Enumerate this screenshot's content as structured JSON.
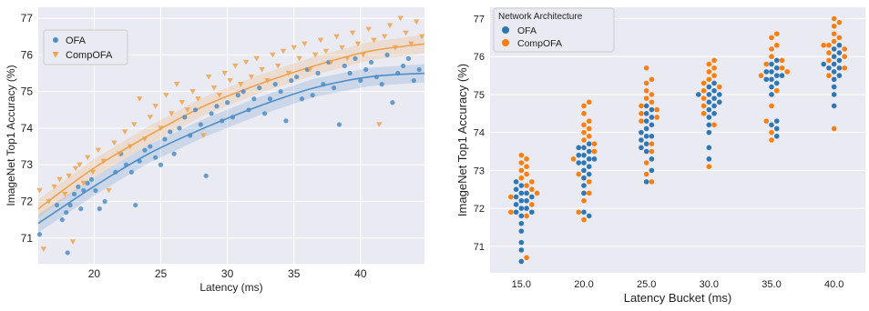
{
  "chart_data": [
    {
      "type": "scatter",
      "xlabel": "Latency (ms)",
      "ylabel": "ImageNet Top1 Accuracy (%)",
      "xlim": [
        15.8,
        44.8
      ],
      "ylim": [
        70.3,
        77.3
      ],
      "xticks": [
        20,
        25,
        30,
        35,
        40
      ],
      "yticks": [
        71,
        72,
        73,
        74,
        75,
        76,
        77
      ],
      "grid": true,
      "legend": "top-left",
      "series": [
        {
          "name": "OFA",
          "color": "#4f8dc6",
          "marker": "circle",
          "fit": [
            71.4,
            72.4,
            73.3,
            74.0,
            74.6,
            75.1,
            75.4,
            75.5
          ],
          "points": [
            [
              15.9,
              71.1
            ],
            [
              17.2,
              71.9
            ],
            [
              17.6,
              71.5
            ],
            [
              17.9,
              71.7
            ],
            [
              18.0,
              70.6
            ],
            [
              18.2,
              71.9
            ],
            [
              18.5,
              72.2
            ],
            [
              18.8,
              72.4
            ],
            [
              19.0,
              71.8
            ],
            [
              19.2,
              72.3
            ],
            [
              19.5,
              72.5
            ],
            [
              19.8,
              72.6
            ],
            [
              20.1,
              72.3
            ],
            [
              20.4,
              71.8
            ],
            [
              20.8,
              72.0
            ],
            [
              21.6,
              72.8
            ],
            [
              22.0,
              73.3
            ],
            [
              22.4,
              73.0
            ],
            [
              22.8,
              72.8
            ],
            [
              23.1,
              71.9
            ],
            [
              23.4,
              73.1
            ],
            [
              23.8,
              73.4
            ],
            [
              24.2,
              73.5
            ],
            [
              24.6,
              73.2
            ],
            [
              25.0,
              73.0
            ],
            [
              25.3,
              73.7
            ],
            [
              25.7,
              73.9
            ],
            [
              26.0,
              73.3
            ],
            [
              26.4,
              74.0
            ],
            [
              26.8,
              74.3
            ],
            [
              27.2,
              73.8
            ],
            [
              27.6,
              74.5
            ],
            [
              28.0,
              74.1
            ],
            [
              28.4,
              72.7
            ],
            [
              28.8,
              74.4
            ],
            [
              29.2,
              74.6
            ],
            [
              29.6,
              74.2
            ],
            [
              30.0,
              74.7
            ],
            [
              30.4,
              74.3
            ],
            [
              30.8,
              74.9
            ],
            [
              31.2,
              75.0
            ],
            [
              31.6,
              74.5
            ],
            [
              32.0,
              74.8
            ],
            [
              32.4,
              75.1
            ],
            [
              32.8,
              74.4
            ],
            [
              33.2,
              74.8
            ],
            [
              33.6,
              75.2
            ],
            [
              34.0,
              75.0
            ],
            [
              34.4,
              74.2
            ],
            [
              34.8,
              75.3
            ],
            [
              35.2,
              75.4
            ],
            [
              35.6,
              74.8
            ],
            [
              36.0,
              75.6
            ],
            [
              36.4,
              74.9
            ],
            [
              36.8,
              75.5
            ],
            [
              37.2,
              75.2
            ],
            [
              37.6,
              75.8
            ],
            [
              38.0,
              75.1
            ],
            [
              38.4,
              74.1
            ],
            [
              38.8,
              75.7
            ],
            [
              39.2,
              75.5
            ],
            [
              39.6,
              75.9
            ],
            [
              40.0,
              75.3
            ],
            [
              40.4,
              75.6
            ],
            [
              40.8,
              75.8
            ],
            [
              41.2,
              75.4
            ],
            [
              41.6,
              75.2
            ],
            [
              42.0,
              76.0
            ],
            [
              42.4,
              74.7
            ],
            [
              42.8,
              75.5
            ],
            [
              43.2,
              75.7
            ],
            [
              43.6,
              75.9
            ],
            [
              44.0,
              75.3
            ],
            [
              44.4,
              75.6
            ]
          ]
        },
        {
          "name": "CompOFA",
          "color": "#f0a24c",
          "marker": "triangle-down",
          "fit": [
            71.8,
            72.9,
            73.8,
            74.6,
            75.2,
            75.7,
            76.1,
            76.3
          ],
          "points": [
            [
              15.9,
              72.3
            ],
            [
              16.2,
              70.7
            ],
            [
              16.6,
              72.0
            ],
            [
              17.0,
              72.4
            ],
            [
              17.4,
              72.6
            ],
            [
              17.8,
              72.2
            ],
            [
              18.1,
              72.7
            ],
            [
              18.4,
              70.9
            ],
            [
              18.6,
              72.9
            ],
            [
              18.9,
              73.0
            ],
            [
              19.2,
              72.5
            ],
            [
              19.5,
              73.2
            ],
            [
              19.9,
              72.8
            ],
            [
              20.3,
              73.4
            ],
            [
              20.7,
              73.1
            ],
            [
              21.1,
              72.3
            ],
            [
              21.5,
              73.6
            ],
            [
              21.9,
              73.3
            ],
            [
              22.3,
              73.9
            ],
            [
              22.7,
              73.5
            ],
            [
              23.0,
              74.1
            ],
            [
              23.4,
              74.8
            ],
            [
              23.8,
              73.7
            ],
            [
              24.2,
              74.3
            ],
            [
              24.6,
              74.6
            ],
            [
              25.0,
              74.0
            ],
            [
              25.4,
              74.9
            ],
            [
              25.8,
              74.4
            ],
            [
              26.2,
              75.2
            ],
            [
              26.6,
              74.7
            ],
            [
              27.0,
              74.5
            ],
            [
              27.4,
              75.0
            ],
            [
              27.8,
              74.8
            ],
            [
              28.2,
              73.8
            ],
            [
              28.6,
              75.4
            ],
            [
              29.0,
              75.1
            ],
            [
              29.4,
              74.9
            ],
            [
              29.8,
              75.5
            ],
            [
              30.2,
              75.3
            ],
            [
              30.6,
              75.7
            ],
            [
              31.0,
              75.2
            ],
            [
              31.4,
              75.8
            ],
            [
              31.8,
              75.4
            ],
            [
              32.2,
              75.9
            ],
            [
              32.6,
              75.6
            ],
            [
              33.0,
              75.3
            ],
            [
              33.4,
              76.0
            ],
            [
              33.8,
              75.7
            ],
            [
              34.2,
              76.1
            ],
            [
              34.6,
              75.5
            ],
            [
              35.0,
              76.2
            ],
            [
              35.4,
              75.9
            ],
            [
              35.8,
              76.3
            ],
            [
              36.2,
              75.6
            ],
            [
              36.6,
              76.0
            ],
            [
              37.0,
              76.4
            ],
            [
              37.4,
              76.1
            ],
            [
              37.8,
              75.8
            ],
            [
              38.2,
              76.5
            ],
            [
              38.6,
              76.2
            ],
            [
              39.0,
              75.9
            ],
            [
              39.4,
              76.6
            ],
            [
              39.8,
              76.3
            ],
            [
              40.2,
              76.0
            ],
            [
              40.6,
              76.7
            ],
            [
              41.0,
              76.4
            ],
            [
              41.4,
              74.1
            ],
            [
              41.8,
              76.5
            ],
            [
              42.2,
              76.8
            ],
            [
              42.6,
              76.2
            ],
            [
              43.0,
              77.0
            ],
            [
              43.4,
              76.6
            ],
            [
              43.8,
              76.3
            ],
            [
              44.2,
              76.9
            ],
            [
              44.6,
              76.5
            ]
          ]
        }
      ]
    },
    {
      "type": "swarm",
      "xlabel": "Latency Bucket (ms)",
      "ylabel": "ImageNet Top1 Accuracy (%)",
      "ylim": [
        70.3,
        77.3
      ],
      "yticks": [
        71,
        72,
        73,
        74,
        75,
        76,
        77
      ],
      "categories": [
        "15.0",
        "20.0",
        "25.0",
        "30.0",
        "35.0",
        "40.0"
      ],
      "grid": true,
      "legend": "top-left",
      "legend_title": "Network Architecture",
      "series": [
        {
          "name": "OFA",
          "color": "#2f77b4",
          "groups": [
            [
              70.6,
              70.9,
              71.1,
              71.4,
              71.6,
              71.8,
              71.9,
              72.0,
              72.0,
              72.1,
              72.2,
              72.3,
              72.3,
              72.4,
              72.5,
              72.6,
              72.7,
              72.2,
              71.9,
              72.4
            ],
            [
              71.8,
              71.9,
              72.4,
              72.6,
              72.8,
              72.9,
              73.0,
              73.1,
              73.2,
              73.3,
              73.3,
              73.4,
              73.5,
              73.6,
              73.6,
              73.7,
              73.4,
              73.2
            ],
            [
              72.7,
              73.0,
              73.3,
              73.5,
              73.6,
              73.7,
              73.8,
              73.9,
              74.0,
              74.1,
              74.2,
              74.3,
              74.4,
              74.5,
              74.6,
              74.7,
              73.9
            ],
            [
              73.3,
              73.6,
              74.0,
              74.2,
              74.4,
              74.5,
              74.6,
              74.7,
              74.8,
              74.9,
              75.0,
              75.0,
              75.1,
              75.2,
              75.3,
              74.8,
              75.0
            ],
            [
              73.9,
              74.1,
              74.2,
              74.3,
              75.0,
              75.2,
              75.3,
              75.4,
              75.5,
              75.5,
              75.6,
              75.6,
              75.7,
              75.8,
              75.9,
              75.4
            ],
            [
              74.7,
              75.0,
              75.2,
              75.4,
              75.5,
              75.6,
              75.7,
              75.8,
              75.9,
              76.0,
              76.1,
              76.2,
              76.3,
              75.7,
              75.8
            ]
          ]
        },
        {
          "name": "CompOFA",
          "color": "#ff7f0e",
          "groups": [
            [
              70.7,
              71.8,
              71.9,
              72.1,
              72.3,
              72.4,
              72.5,
              72.6,
              72.8,
              72.9,
              73.0,
              73.1,
              73.2,
              73.3,
              73.4,
              72.7
            ],
            [
              71.7,
              71.9,
              72.2,
              72.4,
              72.7,
              72.9,
              73.3,
              73.5,
              73.7,
              73.8,
              73.9,
              74.0,
              74.1,
              74.2,
              74.3,
              74.5,
              74.7,
              74.8
            ],
            [
              72.7,
              72.9,
              73.2,
              73.5,
              73.7,
              74.3,
              74.4,
              74.5,
              74.6,
              74.7,
              74.8,
              74.9,
              75.0,
              75.1,
              75.3,
              75.4,
              75.7
            ],
            [
              73.1,
              74.2,
              74.5,
              74.7,
              74.9,
              75.1,
              75.3,
              75.4,
              75.5,
              75.6,
              75.7,
              75.8,
              75.9,
              75.2
            ],
            [
              73.8,
              74.0,
              74.3,
              74.7,
              75.1,
              75.5,
              75.6,
              75.8,
              75.9,
              76.0,
              76.2,
              76.3,
              76.5,
              76.6,
              75.7
            ],
            [
              74.1,
              75.5,
              75.7,
              75.9,
              76.0,
              76.1,
              76.2,
              76.3,
              76.4,
              76.5,
              76.6,
              76.8,
              76.9,
              77.0,
              76.3
            ]
          ]
        }
      ]
    }
  ]
}
